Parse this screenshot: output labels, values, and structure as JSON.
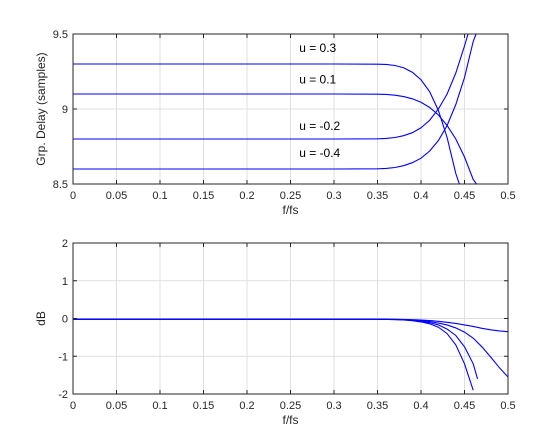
{
  "chart_data": [
    {
      "type": "line",
      "xlabel": "f/fs",
      "ylabel": "Grp. Delay (samples)",
      "xlim": [
        0,
        0.5
      ],
      "ylim": [
        8.5,
        9.5
      ],
      "xticks": [
        "0",
        "0.05",
        "0.1",
        "0.15",
        "0.2",
        "0.25",
        "0.3",
        "0.35",
        "0.4",
        "0.45",
        "0.5"
      ],
      "yticks": [
        "8.5",
        "9",
        "9.5"
      ],
      "grid": true,
      "color": "#0000ff",
      "annotations": [
        {
          "text": "u = 0.3",
          "x": 0.26,
          "y": 9.38
        },
        {
          "text": "u = 0.1",
          "x": 0.26,
          "y": 9.17
        },
        {
          "text": "u = -0.2",
          "x": 0.26,
          "y": 8.86
        },
        {
          "text": "u = -0.4",
          "x": 0.26,
          "y": 8.68
        }
      ],
      "series": [
        {
          "x": [
            0,
            0.05,
            0.1,
            0.15,
            0.2,
            0.25,
            0.3,
            0.35,
            0.36,
            0.37,
            0.38,
            0.39,
            0.4,
            0.41,
            0.42,
            0.43,
            0.44,
            0.45,
            0.46
          ],
          "values": [
            9.3,
            9.3,
            9.3,
            9.3,
            9.3,
            9.3,
            9.3,
            9.299,
            9.297,
            9.29,
            9.275,
            9.245,
            9.195,
            9.115,
            8.99,
            8.81,
            8.57,
            8.4,
            8.3
          ]
        },
        {
          "x": [
            0,
            0.05,
            0.1,
            0.15,
            0.2,
            0.25,
            0.3,
            0.35,
            0.36,
            0.37,
            0.38,
            0.39,
            0.4,
            0.41,
            0.42,
            0.43,
            0.44,
            0.45,
            0.46,
            0.47,
            0.48
          ],
          "values": [
            9.1,
            9.1,
            9.1,
            9.1,
            9.1,
            9.1,
            9.1,
            9.099,
            9.097,
            9.092,
            9.083,
            9.068,
            9.045,
            9.01,
            8.96,
            8.89,
            8.8,
            8.68,
            8.53,
            8.45,
            8.4
          ]
        },
        {
          "x": [
            0,
            0.05,
            0.1,
            0.15,
            0.2,
            0.25,
            0.3,
            0.35,
            0.36,
            0.37,
            0.38,
            0.39,
            0.4,
            0.41,
            0.42,
            0.43,
            0.44,
            0.45,
            0.455,
            0.46
          ],
          "values": [
            8.8,
            8.8,
            8.8,
            8.8,
            8.8,
            8.8,
            8.8,
            8.801,
            8.804,
            8.81,
            8.822,
            8.842,
            8.875,
            8.925,
            9.0,
            9.1,
            9.24,
            9.42,
            9.52,
            9.6
          ]
        },
        {
          "x": [
            0,
            0.05,
            0.1,
            0.15,
            0.2,
            0.25,
            0.3,
            0.35,
            0.36,
            0.37,
            0.38,
            0.39,
            0.4,
            0.41,
            0.42,
            0.43,
            0.44,
            0.45,
            0.46,
            0.47
          ],
          "values": [
            8.6,
            8.6,
            8.6,
            8.6,
            8.6,
            8.6,
            8.6,
            8.601,
            8.604,
            8.61,
            8.622,
            8.642,
            8.672,
            8.72,
            8.79,
            8.89,
            9.03,
            9.21,
            9.45,
            9.6
          ]
        }
      ]
    },
    {
      "type": "line",
      "xlabel": "f/fs",
      "ylabel": "dB",
      "xlim": [
        0,
        0.5
      ],
      "ylim": [
        -2,
        2
      ],
      "xticks": [
        "0",
        "0.05",
        "0.1",
        "0.15",
        "0.2",
        "0.25",
        "0.3",
        "0.35",
        "0.4",
        "0.45",
        "0.5"
      ],
      "yticks": [
        "-2",
        "-1",
        "0",
        "1",
        "2"
      ],
      "grid": true,
      "color": "#0000ff",
      "series": [
        {
          "x": [
            0,
            0.05,
            0.1,
            0.15,
            0.2,
            0.25,
            0.3,
            0.35,
            0.37,
            0.38,
            0.39,
            0.4,
            0.41,
            0.42,
            0.43,
            0.44,
            0.45,
            0.46,
            0.47,
            0.48,
            0.49,
            0.5
          ],
          "values": [
            -0.02,
            -0.02,
            -0.02,
            -0.02,
            -0.02,
            -0.02,
            -0.02,
            -0.02,
            -0.022,
            -0.025,
            -0.03,
            -0.04,
            -0.055,
            -0.075,
            -0.1,
            -0.13,
            -0.17,
            -0.21,
            -0.26,
            -0.3,
            -0.33,
            -0.35
          ]
        },
        {
          "x": [
            0,
            0.05,
            0.1,
            0.15,
            0.2,
            0.25,
            0.3,
            0.35,
            0.37,
            0.38,
            0.39,
            0.4,
            0.41,
            0.42,
            0.43,
            0.44,
            0.45,
            0.46,
            0.47,
            0.48,
            0.49,
            0.5
          ],
          "values": [
            -0.02,
            -0.02,
            -0.02,
            -0.02,
            -0.02,
            -0.02,
            -0.02,
            -0.02,
            -0.025,
            -0.03,
            -0.04,
            -0.055,
            -0.08,
            -0.12,
            -0.17,
            -0.25,
            -0.36,
            -0.52,
            -0.75,
            -1.02,
            -1.3,
            -1.55
          ]
        },
        {
          "x": [
            0,
            0.05,
            0.1,
            0.15,
            0.2,
            0.25,
            0.3,
            0.35,
            0.37,
            0.38,
            0.39,
            0.4,
            0.41,
            0.42,
            0.43,
            0.44,
            0.45,
            0.46,
            0.465
          ],
          "values": [
            -0.02,
            -0.02,
            -0.02,
            -0.02,
            -0.02,
            -0.02,
            -0.02,
            -0.02,
            -0.027,
            -0.035,
            -0.05,
            -0.075,
            -0.11,
            -0.17,
            -0.28,
            -0.45,
            -0.75,
            -1.2,
            -1.6
          ]
        },
        {
          "x": [
            0,
            0.05,
            0.1,
            0.15,
            0.2,
            0.25,
            0.3,
            0.35,
            0.37,
            0.38,
            0.39,
            0.4,
            0.41,
            0.42,
            0.43,
            0.44,
            0.45,
            0.46
          ],
          "values": [
            -0.02,
            -0.02,
            -0.02,
            -0.02,
            -0.02,
            -0.02,
            -0.02,
            -0.02,
            -0.03,
            -0.04,
            -0.06,
            -0.09,
            -0.14,
            -0.23,
            -0.4,
            -0.7,
            -1.2,
            -1.9
          ]
        }
      ]
    }
  ]
}
